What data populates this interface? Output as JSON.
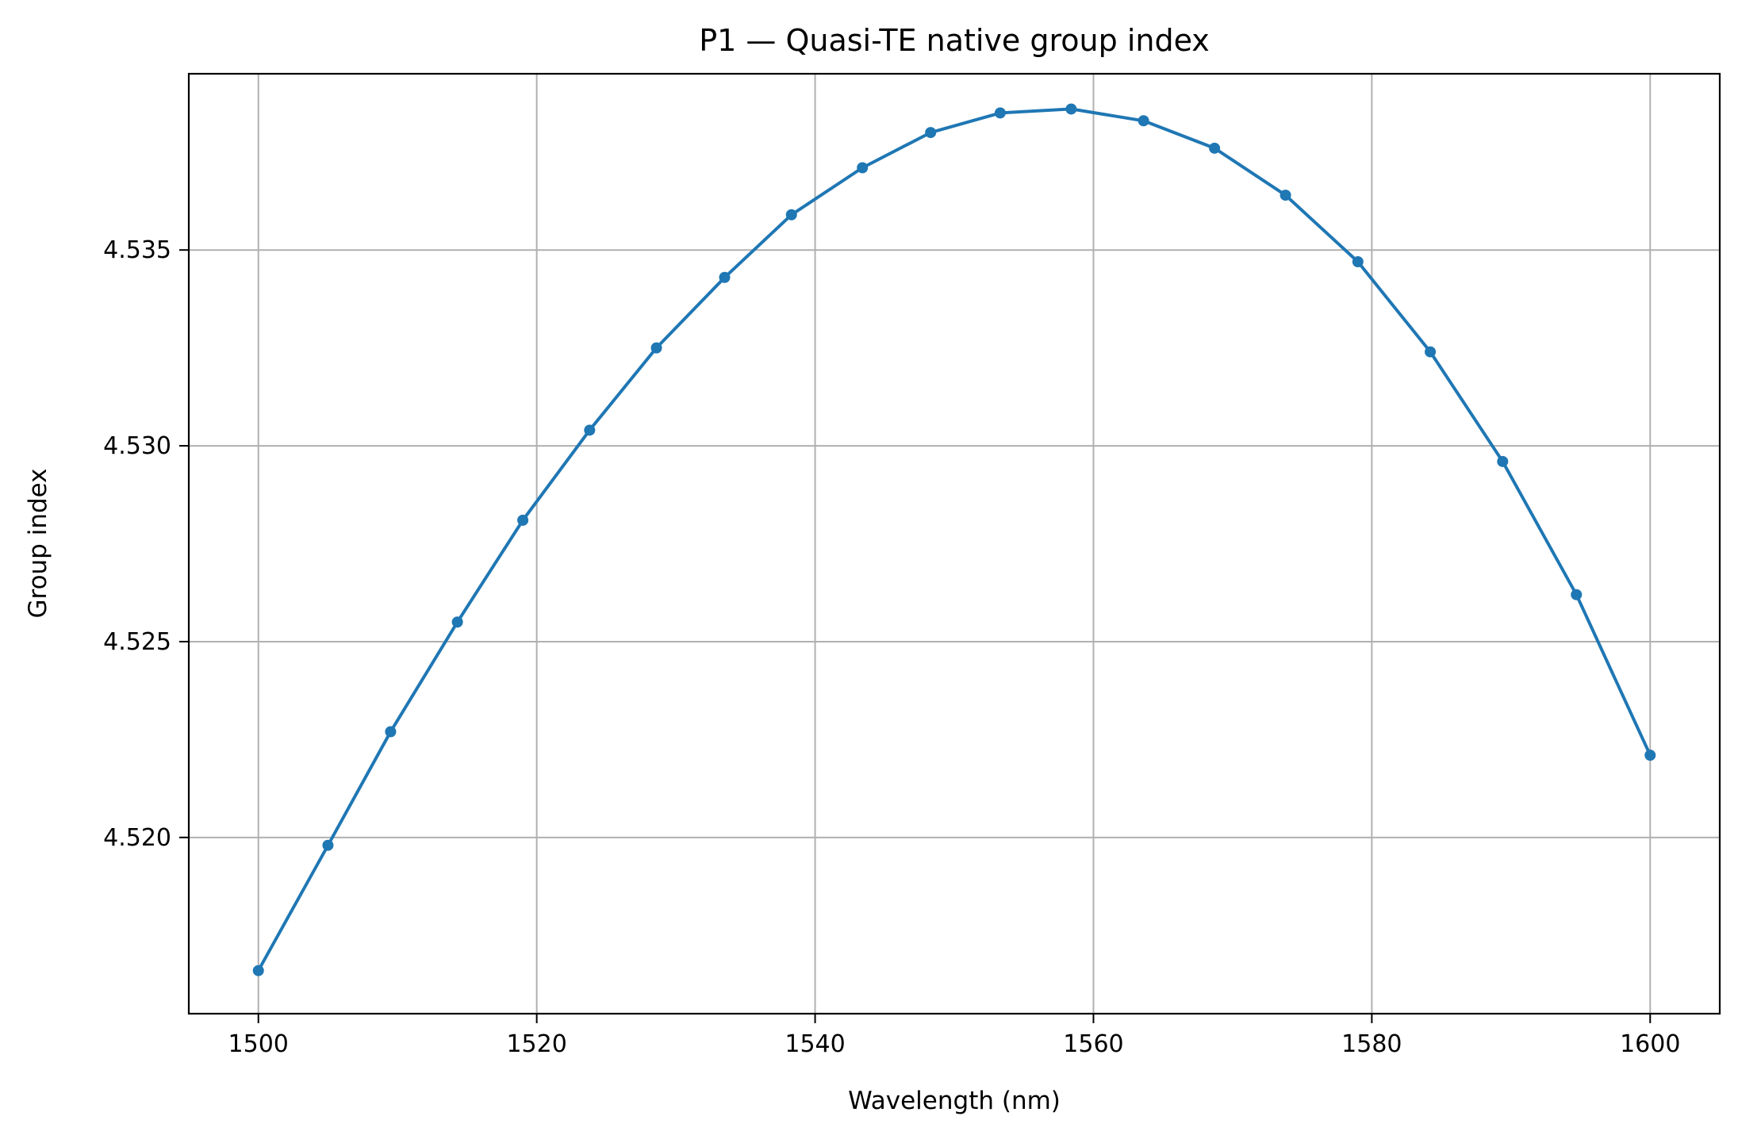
{
  "chart_data": {
    "type": "line",
    "title": "P1 — Quasi-TE native group index",
    "xlabel": "Wavelength (nm)",
    "ylabel": "Group index",
    "xlim": [
      1495,
      1605
    ],
    "ylim": [
      4.5155,
      4.5395
    ],
    "xticks": [
      1500,
      1520,
      1540,
      1560,
      1580,
      1600
    ],
    "xtick_labels": [
      "1500",
      "1520",
      "1540",
      "1560",
      "1580",
      "1600"
    ],
    "yticks": [
      4.52,
      4.525,
      4.53,
      4.535
    ],
    "ytick_labels": [
      "4.520",
      "4.525",
      "4.530",
      "4.535"
    ],
    "grid": true,
    "legend": "none",
    "series": [
      {
        "color": "#1f77b4",
        "marker": "circle",
        "x": [
          1500.0,
          1505.0,
          1509.5,
          1514.3,
          1519.0,
          1523.8,
          1528.6,
          1533.5,
          1538.3,
          1543.4,
          1548.3,
          1553.3,
          1558.4,
          1563.6,
          1568.7,
          1573.8,
          1579.0,
          1584.2,
          1589.4,
          1594.7,
          1600.0
        ],
        "y": [
          4.5166,
          4.5198,
          4.5227,
          4.5255,
          4.5281,
          4.5304,
          4.5325,
          4.5343,
          4.5359,
          4.5371,
          4.538,
          4.5385,
          4.5386,
          4.5383,
          4.5376,
          4.5364,
          4.5347,
          4.5324,
          4.5296,
          4.5262,
          4.5221
        ]
      }
    ]
  }
}
